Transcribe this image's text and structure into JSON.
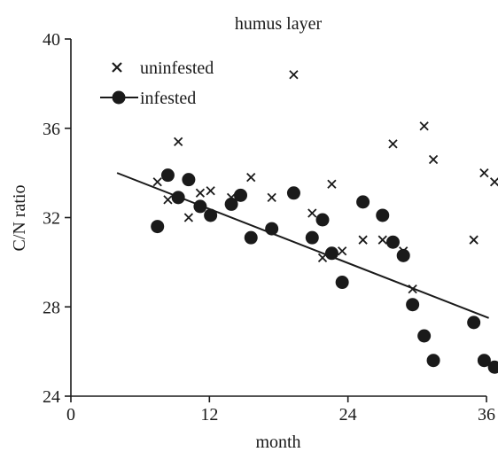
{
  "chart_data": {
    "type": "scatter",
    "title": "humus layer",
    "xlabel": "month",
    "ylabel": "C/N ratio",
    "xlim": [
      0,
      36
    ],
    "ylim": [
      24,
      40
    ],
    "xticks": [
      "0",
      "12",
      "24",
      "36"
    ],
    "yticks": [
      "24",
      "28",
      "32",
      "36",
      "40"
    ],
    "grid": false,
    "legend_position": "top-left",
    "series": [
      {
        "name": "uninfested",
        "marker": "x",
        "color": "#1a1a1a",
        "points": [
          [
            7.5,
            33.6
          ],
          [
            8.4,
            32.8
          ],
          [
            9.3,
            35.4
          ],
          [
            10.2,
            32.0
          ],
          [
            11.2,
            33.1
          ],
          [
            12.1,
            33.2
          ],
          [
            13.9,
            32.9
          ],
          [
            15.6,
            33.8
          ],
          [
            17.4,
            32.9
          ],
          [
            19.3,
            38.4
          ],
          [
            20.9,
            32.2
          ],
          [
            21.8,
            30.2
          ],
          [
            22.6,
            33.5
          ],
          [
            23.5,
            30.5
          ],
          [
            25.3,
            31.0
          ],
          [
            27.0,
            31.0
          ],
          [
            27.9,
            35.3
          ],
          [
            28.8,
            30.5
          ],
          [
            29.6,
            28.8
          ],
          [
            30.6,
            36.1
          ],
          [
            31.4,
            34.6
          ],
          [
            34.9,
            31.0
          ],
          [
            35.8,
            34.0
          ],
          [
            36.7,
            33.6
          ]
        ]
      },
      {
        "name": "infested",
        "marker": "circle",
        "color": "#1a1a1a",
        "points": [
          [
            7.5,
            31.6
          ],
          [
            8.4,
            33.9
          ],
          [
            9.3,
            32.9
          ],
          [
            10.2,
            33.7
          ],
          [
            11.2,
            32.5
          ],
          [
            12.1,
            32.1
          ],
          [
            13.9,
            32.6
          ],
          [
            14.7,
            33.0
          ],
          [
            15.6,
            31.1
          ],
          [
            17.4,
            31.5
          ],
          [
            19.3,
            33.1
          ],
          [
            20.9,
            31.1
          ],
          [
            21.8,
            31.9
          ],
          [
            22.6,
            30.4
          ],
          [
            23.5,
            29.1
          ],
          [
            25.3,
            32.7
          ],
          [
            27.0,
            32.1
          ],
          [
            27.9,
            30.9
          ],
          [
            28.8,
            30.3
          ],
          [
            29.6,
            28.1
          ],
          [
            30.6,
            26.7
          ],
          [
            31.4,
            25.6
          ],
          [
            34.9,
            27.3
          ],
          [
            35.8,
            25.6
          ],
          [
            36.7,
            25.3
          ]
        ]
      }
    ],
    "trendline": {
      "series": "infested",
      "x": [
        4,
        36.2
      ],
      "y": [
        34.0,
        27.5
      ]
    }
  }
}
